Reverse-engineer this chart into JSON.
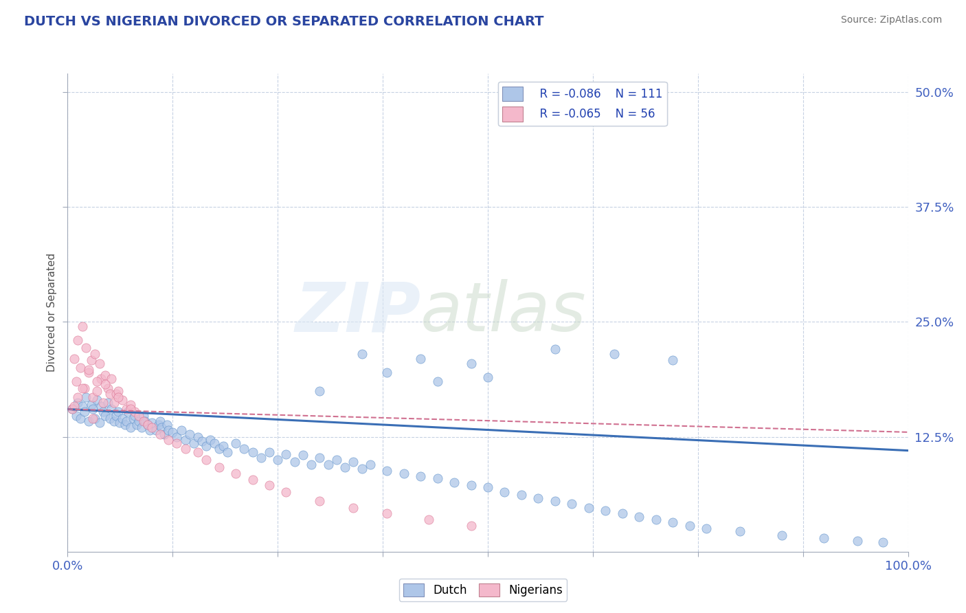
{
  "title": "DUTCH VS NIGERIAN DIVORCED OR SEPARATED CORRELATION CHART",
  "source": "Source: ZipAtlas.com",
  "ylabel": "Divorced or Separated",
  "xlim": [
    0,
    1.0
  ],
  "ylim": [
    0,
    0.52
  ],
  "xtick_positions": [
    0.0,
    0.125,
    0.25,
    0.375,
    0.5,
    0.625,
    0.75,
    0.875,
    1.0
  ],
  "xticklabels": [
    "0.0%",
    "",
    "",
    "",
    "",
    "",
    "",
    "",
    "100.0%"
  ],
  "ytick_positions": [
    0.125,
    0.25,
    0.375,
    0.5
  ],
  "yticklabels": [
    "12.5%",
    "25.0%",
    "37.5%",
    "50.0%"
  ],
  "dutch_color": "#aec6e8",
  "dutch_edge_color": "#5b8fc9",
  "nigerian_color": "#f4b8cb",
  "nigerian_edge_color": "#d97090",
  "dutch_line_color": "#3a6eb5",
  "nigerian_line_color": "#d07090",
  "legend_r_dutch": "R = -0.086",
  "legend_n_dutch": "N = 111",
  "legend_r_nigerian": "R = -0.065",
  "legend_n_nigerian": "N = 56",
  "dutch_line_intercept": 0.155,
  "dutch_line_slope": -0.045,
  "nigerian_line_intercept": 0.155,
  "nigerian_line_slope": -0.025,
  "dutch_scatter_x": [
    0.005,
    0.01,
    0.012,
    0.015,
    0.018,
    0.02,
    0.022,
    0.025,
    0.028,
    0.03,
    0.032,
    0.035,
    0.038,
    0.04,
    0.042,
    0.045,
    0.048,
    0.05,
    0.052,
    0.055,
    0.058,
    0.06,
    0.062,
    0.065,
    0.068,
    0.07,
    0.072,
    0.075,
    0.078,
    0.08,
    0.082,
    0.085,
    0.088,
    0.09,
    0.092,
    0.095,
    0.098,
    0.1,
    0.105,
    0.108,
    0.11,
    0.112,
    0.115,
    0.118,
    0.12,
    0.125,
    0.13,
    0.135,
    0.14,
    0.145,
    0.15,
    0.155,
    0.16,
    0.165,
    0.17,
    0.175,
    0.18,
    0.185,
    0.19,
    0.2,
    0.21,
    0.22,
    0.23,
    0.24,
    0.25,
    0.26,
    0.27,
    0.28,
    0.29,
    0.3,
    0.31,
    0.32,
    0.33,
    0.34,
    0.35,
    0.36,
    0.38,
    0.4,
    0.42,
    0.44,
    0.46,
    0.48,
    0.5,
    0.52,
    0.54,
    0.56,
    0.58,
    0.6,
    0.62,
    0.64,
    0.66,
    0.68,
    0.7,
    0.72,
    0.74,
    0.76,
    0.8,
    0.85,
    0.9,
    0.94,
    0.97,
    0.35,
    0.42,
    0.48,
    0.38,
    0.58,
    0.65,
    0.72,
    0.5,
    0.44,
    0.3
  ],
  "dutch_scatter_y": [
    0.155,
    0.148,
    0.162,
    0.145,
    0.158,
    0.152,
    0.168,
    0.142,
    0.16,
    0.155,
    0.145,
    0.165,
    0.14,
    0.158,
    0.152,
    0.148,
    0.162,
    0.145,
    0.155,
    0.142,
    0.148,
    0.152,
    0.14,
    0.145,
    0.138,
    0.142,
    0.152,
    0.135,
    0.145,
    0.148,
    0.138,
    0.142,
    0.135,
    0.148,
    0.142,
    0.138,
    0.132,
    0.14,
    0.132,
    0.138,
    0.142,
    0.135,
    0.128,
    0.138,
    0.132,
    0.13,
    0.125,
    0.132,
    0.122,
    0.128,
    0.118,
    0.125,
    0.12,
    0.115,
    0.122,
    0.118,
    0.112,
    0.115,
    0.108,
    0.118,
    0.112,
    0.108,
    0.102,
    0.108,
    0.1,
    0.106,
    0.098,
    0.105,
    0.095,
    0.102,
    0.095,
    0.1,
    0.092,
    0.098,
    0.09,
    0.095,
    0.088,
    0.085,
    0.082,
    0.08,
    0.075,
    0.072,
    0.07,
    0.065,
    0.062,
    0.058,
    0.055,
    0.052,
    0.048,
    0.045,
    0.042,
    0.038,
    0.035,
    0.032,
    0.028,
    0.025,
    0.022,
    0.018,
    0.015,
    0.012,
    0.01,
    0.215,
    0.21,
    0.205,
    0.195,
    0.22,
    0.215,
    0.208,
    0.19,
    0.185,
    0.175
  ],
  "nigerian_scatter_x": [
    0.005,
    0.008,
    0.01,
    0.012,
    0.015,
    0.018,
    0.02,
    0.022,
    0.025,
    0.028,
    0.03,
    0.032,
    0.035,
    0.038,
    0.04,
    0.042,
    0.045,
    0.048,
    0.05,
    0.052,
    0.055,
    0.058,
    0.06,
    0.065,
    0.07,
    0.075,
    0.08,
    0.085,
    0.09,
    0.095,
    0.1,
    0.11,
    0.12,
    0.13,
    0.14,
    0.155,
    0.165,
    0.18,
    0.2,
    0.22,
    0.24,
    0.26,
    0.3,
    0.34,
    0.38,
    0.43,
    0.48,
    0.03,
    0.045,
    0.06,
    0.075,
    0.025,
    0.018,
    0.012,
    0.008,
    0.035
  ],
  "nigerian_scatter_y": [
    0.155,
    0.21,
    0.185,
    0.23,
    0.2,
    0.245,
    0.178,
    0.222,
    0.195,
    0.208,
    0.168,
    0.215,
    0.175,
    0.205,
    0.188,
    0.162,
    0.192,
    0.178,
    0.172,
    0.188,
    0.162,
    0.172,
    0.175,
    0.165,
    0.155,
    0.16,
    0.152,
    0.148,
    0.142,
    0.138,
    0.135,
    0.128,
    0.122,
    0.118,
    0.112,
    0.108,
    0.1,
    0.092,
    0.085,
    0.078,
    0.072,
    0.065,
    0.055,
    0.048,
    0.042,
    0.035,
    0.028,
    0.145,
    0.182,
    0.168,
    0.155,
    0.198,
    0.178,
    0.168,
    0.158,
    0.185
  ]
}
